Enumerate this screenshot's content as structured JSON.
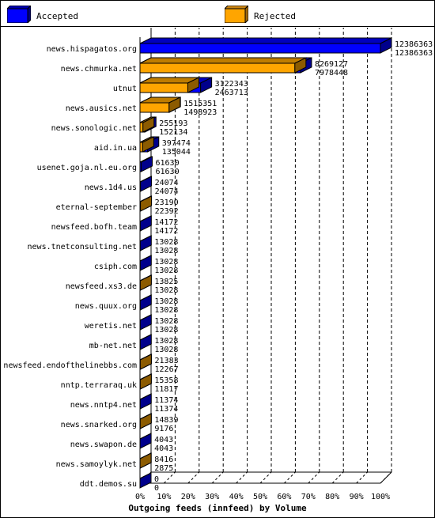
{
  "legend": {
    "accepted_label": "Accepted",
    "rejected_label": "Rejected",
    "accepted_color": "#0000ff",
    "rejected_color": "#ffa500"
  },
  "chart_data": {
    "type": "bar",
    "orientation": "horizontal",
    "stacked": false,
    "title": "",
    "xlabel": "Outgoing feeds (innfeed) by Volume",
    "ylabel": "",
    "xlim": [
      0,
      100
    ],
    "x_ticks": [
      "0%",
      "10%",
      "20%",
      "30%",
      "40%",
      "50%",
      "60%",
      "70%",
      "80%",
      "90%",
      "100%"
    ],
    "grid": "dashed vertical",
    "legend_position": "top",
    "max_value": 12386363,
    "categories": [
      "news.hispagatos.org",
      "news.chmurka.net",
      "utnut",
      "news.ausics.net",
      "news.sonologic.net",
      "aid.in.ua",
      "usenet.goja.nl.eu.org",
      "news.1d4.us",
      "eternal-september",
      "newsfeed.bofh.team",
      "news.tnetconsulting.net",
      "csiph.com",
      "newsfeed.xs3.de",
      "news.quux.org",
      "weretis.net",
      "mb-net.net",
      "newsfeed.endofthelinebbs.com",
      "nntp.terraraq.uk",
      "news.nntp4.net",
      "news.snarked.org",
      "news.swapon.de",
      "news.samoylyk.net",
      "ddt.demos.su"
    ],
    "series": [
      {
        "name": "Accepted",
        "color": "#0000ff",
        "values": [
          12386363,
          8269127,
          3122343,
          1515351,
          255193,
          397474,
          61630,
          24074,
          23190,
          14172,
          13028,
          13028,
          13825,
          13028,
          13028,
          13028,
          21383,
          15358,
          11374,
          14839,
          4043,
          8416,
          0
        ]
      },
      {
        "name": "Rejected",
        "color": "#ffa500",
        "values": [
          12386363,
          7978448,
          2463713,
          1498923,
          152134,
          135044,
          61630,
          24074,
          22392,
          14172,
          13028,
          13028,
          13028,
          13028,
          13028,
          13028,
          12267,
          11817,
          11374,
          9176,
          4043,
          2875,
          0
        ]
      }
    ]
  }
}
